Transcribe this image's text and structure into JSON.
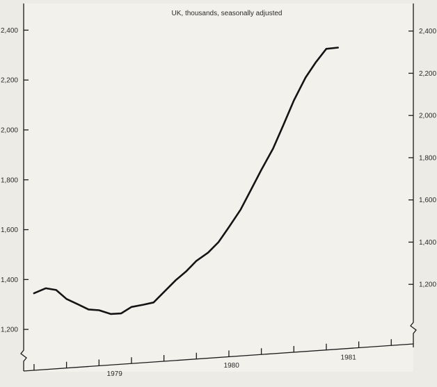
{
  "chart_data": {
    "type": "line",
    "title": "UK, thousands, seasonally adjusted",
    "xlabel": "",
    "ylabel": "",
    "left_axis": {
      "ylim": [
        1100,
        2500
      ],
      "ticks": [
        1200,
        1400,
        1600,
        1800,
        2000,
        2200,
        2400
      ],
      "tick_labels": [
        "1,200",
        "1,400",
        "1,600",
        "1,800",
        "2,000",
        "2,200",
        "2,400"
      ]
    },
    "right_axis": {
      "ylim": [
        1000,
        2500
      ],
      "ticks": [
        1200,
        1400,
        1600,
        1800,
        2000,
        2200,
        2400
      ],
      "tick_labels": [
        "1,200",
        "1,400",
        "1,600",
        "1,800",
        "2,000",
        "2,200",
        "2,400"
      ]
    },
    "x_tick_labels": [
      "1979",
      "1980",
      "1981"
    ],
    "xlim": [
      1978.75,
      1981.75
    ],
    "series": [
      {
        "x": [
          1978.83,
          1978.92,
          1979.0,
          1979.08,
          1979.17,
          1979.25,
          1979.33,
          1979.42,
          1979.5,
          1979.58,
          1979.67,
          1979.75,
          1979.83,
          1979.92,
          1980.0,
          1980.08,
          1980.17,
          1980.25,
          1980.33,
          1980.42,
          1980.5,
          1980.58,
          1980.67,
          1980.75,
          1980.83,
          1980.92,
          1981.0,
          1981.08,
          1981.17
        ],
        "values": [
          1345,
          1365,
          1358,
          1322,
          1300,
          1280,
          1277,
          1262,
          1264,
          1290,
          1299,
          1308,
          1350,
          1397,
          1432,
          1475,
          1508,
          1550,
          1610,
          1680,
          1760,
          1840,
          1925,
          2020,
          2118,
          2210,
          2272,
          2325,
          2330
        ]
      }
    ],
    "grid": false,
    "legend": "none"
  }
}
